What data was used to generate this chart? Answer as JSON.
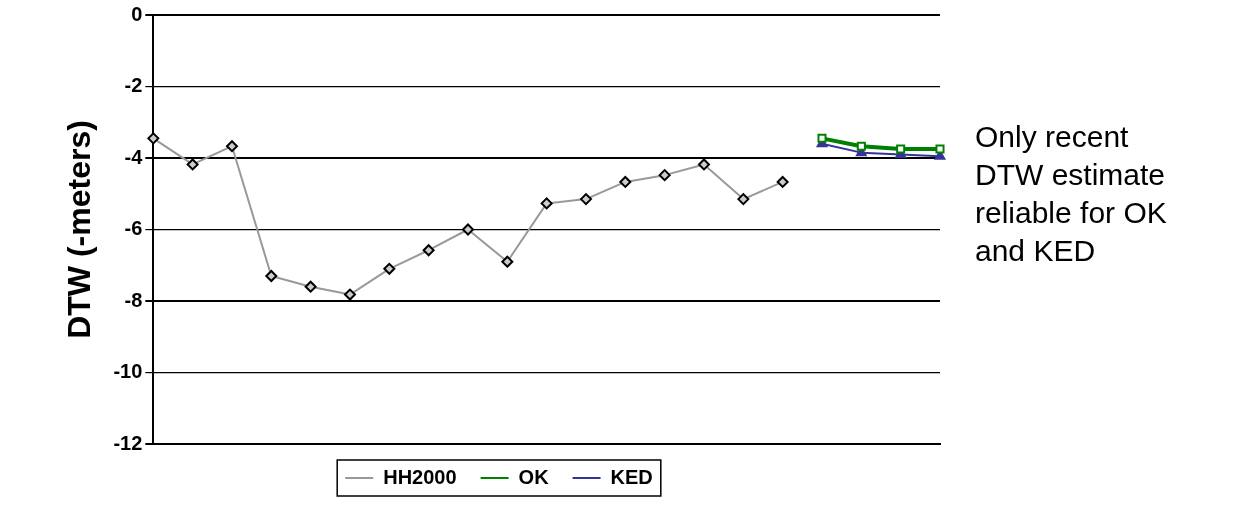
{
  "chart_data": {
    "type": "line",
    "ylabel": "DTW (-meters)",
    "categories": [
      null,
      null,
      null,
      null,
      null,
      null,
      null,
      null,
      null,
      null,
      null,
      null,
      null,
      null,
      null,
      null,
      null,
      null,
      null,
      null,
      null
    ],
    "series": [
      {
        "name": "HH2000",
        "color": "#999999",
        "marker": "diamond",
        "values": [
          -3.45,
          -4.18,
          -3.67,
          -7.3,
          -7.6,
          -7.82,
          -7.1,
          -6.58,
          -6.0,
          -6.9,
          -5.27,
          -5.15,
          -4.67,
          -4.48,
          -4.18,
          -5.15,
          -4.67,
          null,
          null,
          null,
          null
        ]
      },
      {
        "name": "OK",
        "color": "#008000",
        "marker": "square",
        "values": [
          null,
          null,
          null,
          null,
          null,
          null,
          null,
          null,
          null,
          null,
          null,
          null,
          null,
          null,
          null,
          null,
          null,
          -3.45,
          -3.67,
          -3.75,
          -3.75
        ]
      },
      {
        "name": "KED",
        "color": "#333399",
        "marker": "triangle",
        "values": [
          null,
          null,
          null,
          null,
          null,
          null,
          null,
          null,
          null,
          null,
          null,
          null,
          null,
          null,
          null,
          null,
          null,
          -3.6,
          -3.85,
          -3.9,
          -3.95
        ]
      }
    ],
    "ylim": [
      -12,
      0
    ],
    "yticks": [
      -12,
      -10,
      -8,
      -6,
      -4,
      -2,
      0
    ],
    "grid": "y",
    "legend": "bottom",
    "tick_labels": "y",
    "annotations": [
      "Only recent DTW estimate reliable for OK and KED"
    ]
  }
}
